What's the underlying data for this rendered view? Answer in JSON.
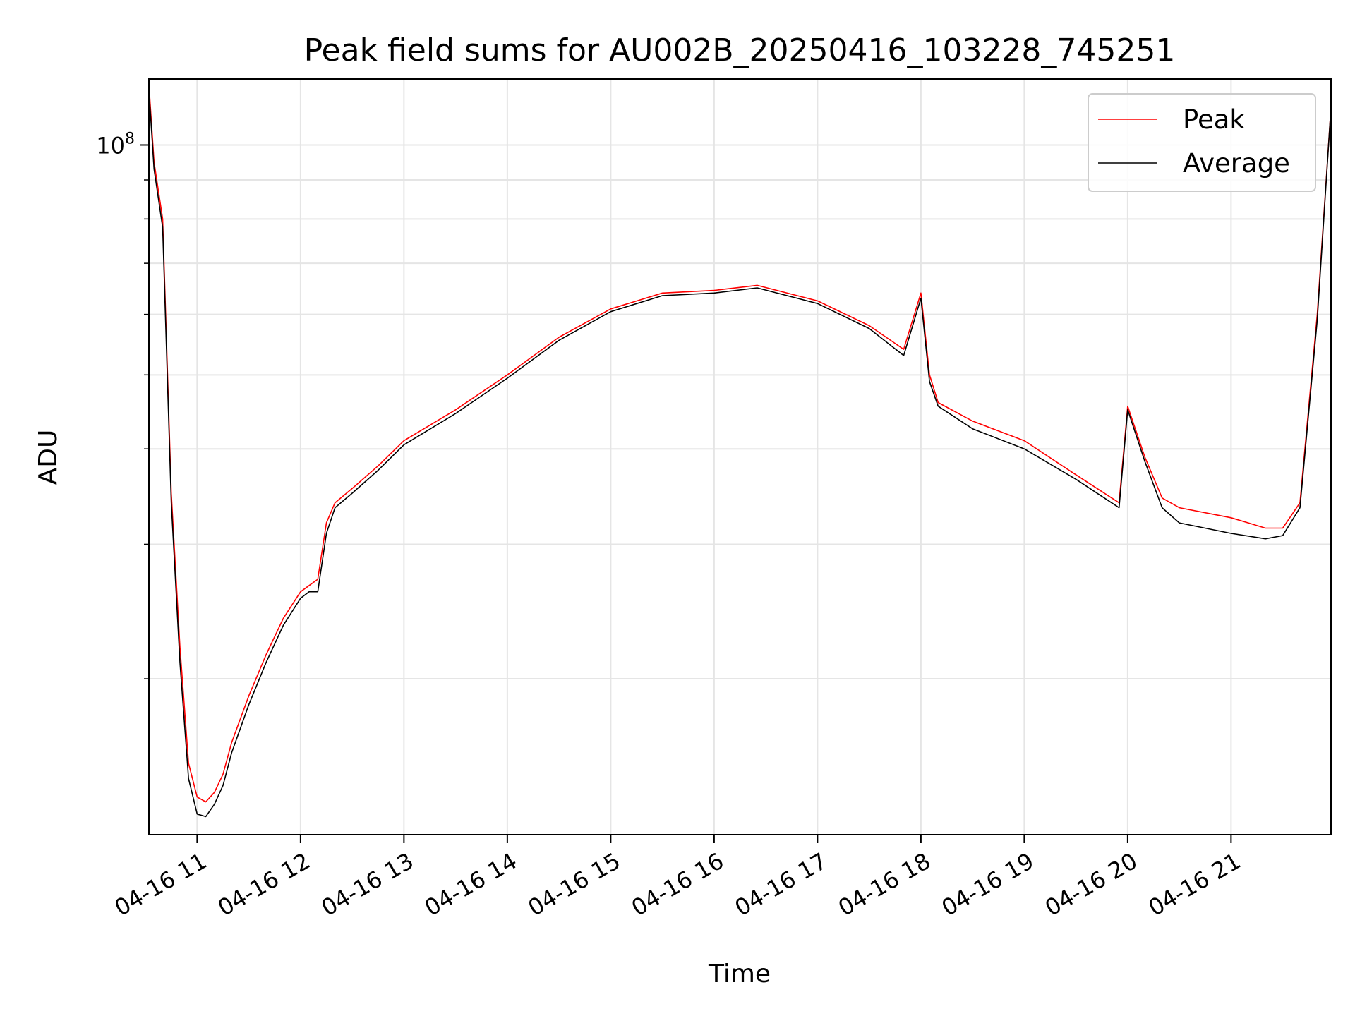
{
  "chart_data": {
    "type": "line",
    "title": "Peak field sums for AU002B_20250416_103228_745251",
    "xlabel": "Time",
    "ylabel": "ADU",
    "y_scale": "log",
    "xlim": [
      "2025-04-16 10:32",
      "2025-04-16 21:58"
    ],
    "ylim": [
      12500000,
      122000000
    ],
    "x_ticks": [
      "04-16 11",
      "04-16 12",
      "04-16 13",
      "04-16 14",
      "04-16 15",
      "04-16 16",
      "04-16 17",
      "04-16 18",
      "04-16 19",
      "04-16 20",
      "04-16 21"
    ],
    "x_tick_times": [
      "2025-04-16 11:00",
      "2025-04-16 12:00",
      "2025-04-16 13:00",
      "2025-04-16 14:00",
      "2025-04-16 15:00",
      "2025-04-16 16:00",
      "2025-04-16 17:00",
      "2025-04-16 18:00",
      "2025-04-16 19:00",
      "2025-04-16 20:00",
      "2025-04-16 21:00"
    ],
    "y_major_tick_labels": [
      {
        "value": 100000000,
        "base": "10",
        "exp": "8"
      }
    ],
    "y_minor_ticks": [
      20000000,
      30000000,
      40000000,
      50000000,
      60000000,
      70000000,
      80000000,
      90000000
    ],
    "grid": true,
    "legend_position": "top-right",
    "series": [
      {
        "name": "Peak",
        "color": "#ff0000",
        "x": [
          "2025-04-16 10:32",
          "2025-04-16 10:35",
          "2025-04-16 10:40",
          "2025-04-16 10:45",
          "2025-04-16 10:50",
          "2025-04-16 10:55",
          "2025-04-16 11:00",
          "2025-04-16 11:05",
          "2025-04-16 11:10",
          "2025-04-16 11:15",
          "2025-04-16 11:20",
          "2025-04-16 11:30",
          "2025-04-16 11:40",
          "2025-04-16 11:50",
          "2025-04-16 12:00",
          "2025-04-16 12:05",
          "2025-04-16 12:10",
          "2025-04-16 12:15",
          "2025-04-16 12:20",
          "2025-04-16 12:30",
          "2025-04-16 12:45",
          "2025-04-16 13:00",
          "2025-04-16 13:30",
          "2025-04-16 14:00",
          "2025-04-16 14:30",
          "2025-04-16 15:00",
          "2025-04-16 15:30",
          "2025-04-16 16:00",
          "2025-04-16 16:25",
          "2025-04-16 17:00",
          "2025-04-16 17:30",
          "2025-04-16 17:50",
          "2025-04-16 18:00",
          "2025-04-16 18:05",
          "2025-04-16 18:10",
          "2025-04-16 18:30",
          "2025-04-16 19:00",
          "2025-04-16 19:30",
          "2025-04-16 19:55",
          "2025-04-16 20:00",
          "2025-04-16 20:10",
          "2025-04-16 20:20",
          "2025-04-16 20:30",
          "2025-04-16 21:00",
          "2025-04-16 21:20",
          "2025-04-16 21:30",
          "2025-04-16 21:40",
          "2025-04-16 21:50",
          "2025-04-16 21:58"
        ],
        "values": [
          120000000,
          95000000,
          80000000,
          35000000,
          22000000,
          15500000,
          14000000,
          13800000,
          14200000,
          15000000,
          16500000,
          19000000,
          21500000,
          24000000,
          26000000,
          26500000,
          27000000,
          32000000,
          34000000,
          35500000,
          38000000,
          41000000,
          45000000,
          50000000,
          56000000,
          61000000,
          64000000,
          64500000,
          65500000,
          62500000,
          58000000,
          54000000,
          64000000,
          50000000,
          46000000,
          43500000,
          41000000,
          37000000,
          34000000,
          45500000,
          39000000,
          34500000,
          33500000,
          32500000,
          31500000,
          31500000,
          34000000,
          60000000,
          112000000
        ]
      },
      {
        "name": "Average",
        "color": "#000000",
        "x": [
          "2025-04-16 10:32",
          "2025-04-16 10:35",
          "2025-04-16 10:40",
          "2025-04-16 10:45",
          "2025-04-16 10:50",
          "2025-04-16 10:55",
          "2025-04-16 11:00",
          "2025-04-16 11:05",
          "2025-04-16 11:10",
          "2025-04-16 11:15",
          "2025-04-16 11:20",
          "2025-04-16 11:30",
          "2025-04-16 11:40",
          "2025-04-16 11:50",
          "2025-04-16 12:00",
          "2025-04-16 12:05",
          "2025-04-16 12:10",
          "2025-04-16 12:15",
          "2025-04-16 12:20",
          "2025-04-16 12:30",
          "2025-04-16 12:45",
          "2025-04-16 13:00",
          "2025-04-16 13:30",
          "2025-04-16 14:00",
          "2025-04-16 14:30",
          "2025-04-16 15:00",
          "2025-04-16 15:30",
          "2025-04-16 16:00",
          "2025-04-16 16:25",
          "2025-04-16 17:00",
          "2025-04-16 17:30",
          "2025-04-16 17:50",
          "2025-04-16 18:00",
          "2025-04-16 18:05",
          "2025-04-16 18:10",
          "2025-04-16 18:30",
          "2025-04-16 19:00",
          "2025-04-16 19:30",
          "2025-04-16 19:55",
          "2025-04-16 20:00",
          "2025-04-16 20:10",
          "2025-04-16 20:20",
          "2025-04-16 20:30",
          "2025-04-16 21:00",
          "2025-04-16 21:20",
          "2025-04-16 21:30",
          "2025-04-16 21:40",
          "2025-04-16 21:50",
          "2025-04-16 21:58"
        ],
        "values": [
          118000000,
          93000000,
          78000000,
          34000000,
          21000000,
          14800000,
          13300000,
          13200000,
          13700000,
          14500000,
          16000000,
          18500000,
          21000000,
          23500000,
          25500000,
          26000000,
          26000000,
          31000000,
          33500000,
          35000000,
          37500000,
          40500000,
          44500000,
          49500000,
          55500000,
          60500000,
          63500000,
          64000000,
          65000000,
          62000000,
          57500000,
          53000000,
          63000000,
          49000000,
          45500000,
          42500000,
          40000000,
          36500000,
          33500000,
          45000000,
          38500000,
          33500000,
          32000000,
          31000000,
          30500000,
          30800000,
          33500000,
          59000000,
          112000000
        ]
      }
    ]
  }
}
